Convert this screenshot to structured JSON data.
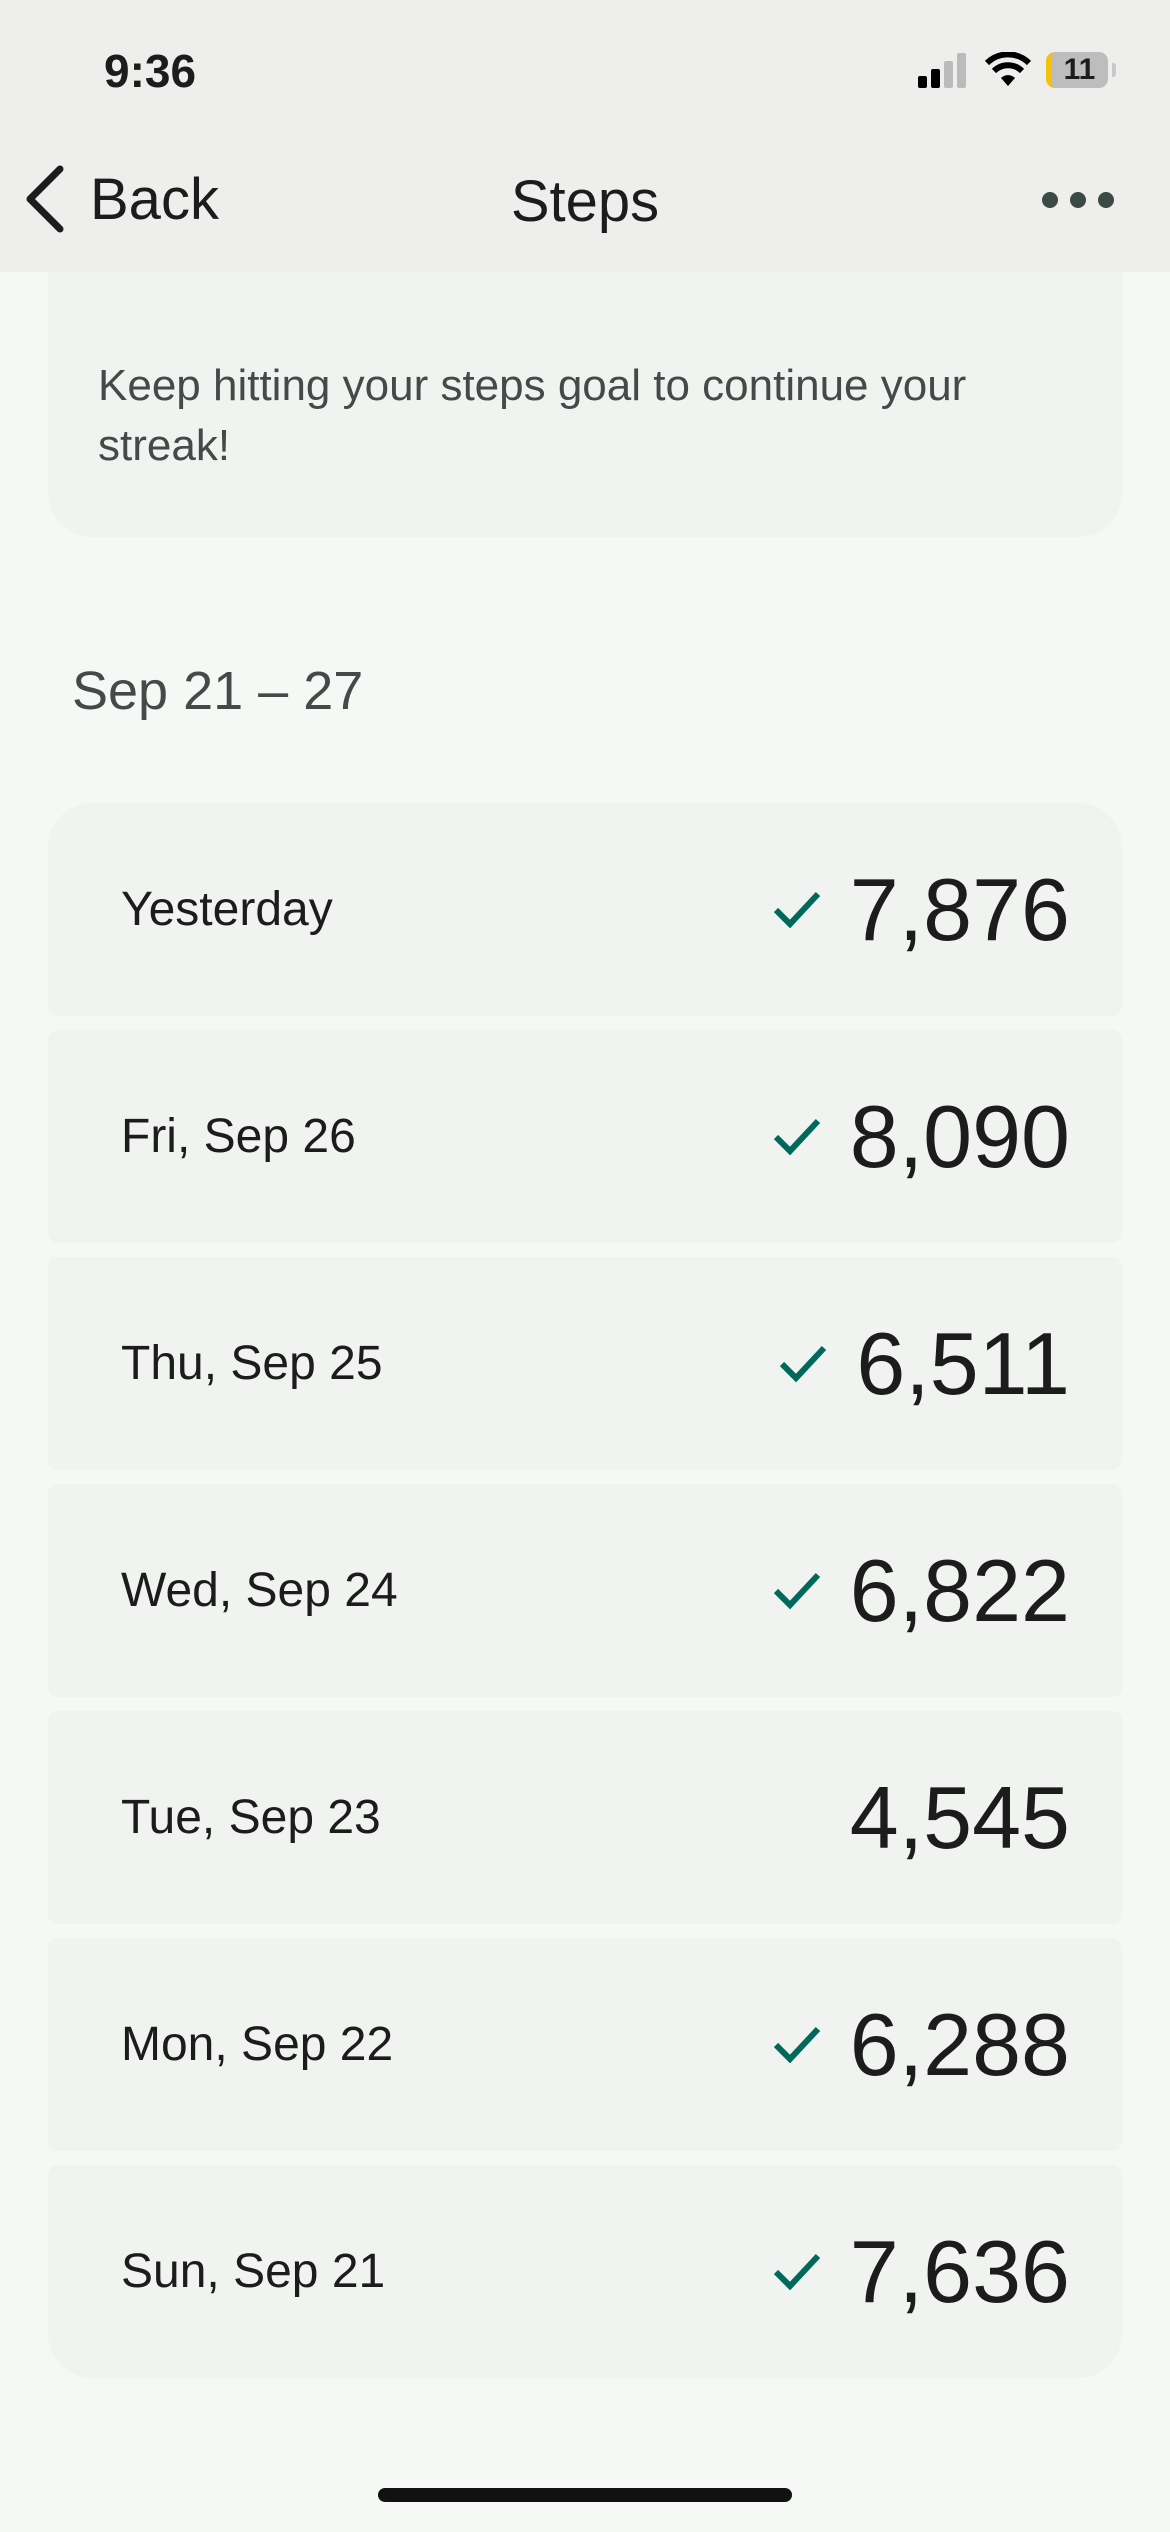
{
  "status_bar": {
    "time": "9:36",
    "battery": "11"
  },
  "nav": {
    "back_label": "Back",
    "title": "Steps",
    "more_icon": "ellipsis-icon"
  },
  "streak": {
    "message": "Keep hitting your steps goal to continue your streak!"
  },
  "week": {
    "range": "Sep 21 – 27"
  },
  "colors": {
    "check": "#00695c",
    "background": "#f6f8f6",
    "card": "#f1f3f1"
  },
  "days": [
    {
      "label": "Yesterday",
      "steps": "7,876",
      "goal_met": true
    },
    {
      "label": "Fri, Sep 26",
      "steps": "8,090",
      "goal_met": true
    },
    {
      "label": "Thu, Sep 25",
      "steps": "6,511",
      "goal_met": true
    },
    {
      "label": "Wed, Sep 24",
      "steps": "6,822",
      "goal_met": true
    },
    {
      "label": "Tue, Sep 23",
      "steps": "4,545",
      "goal_met": false
    },
    {
      "label": "Mon, Sep 22",
      "steps": "6,288",
      "goal_met": true
    },
    {
      "label": "Sun, Sep 21",
      "steps": "7,636",
      "goal_met": true
    }
  ]
}
